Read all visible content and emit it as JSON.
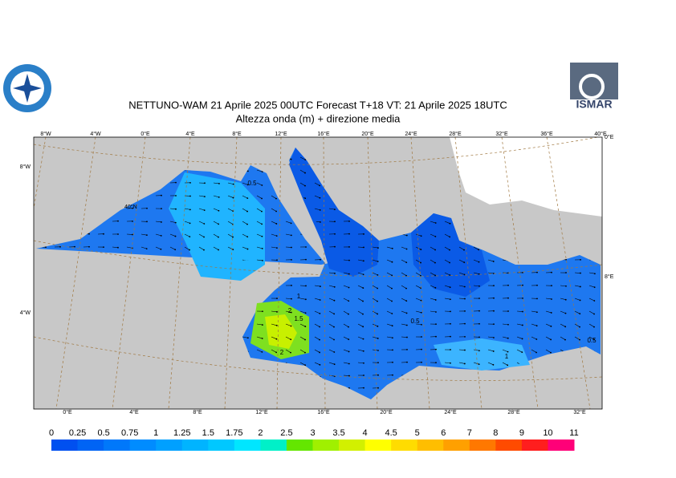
{
  "header": {
    "title": "NETTUNO-WAM  21   Aprile  2025 00UTC Forecast T+18 VT: 21   Aprile  2025 18UTC",
    "subtitle": "Altezza onda (m) + direzione media",
    "logo_text": "ISMAR"
  },
  "map": {
    "top_lon_labels": [
      "8°W",
      "4°W",
      "0°E",
      "4°E",
      "8°E",
      "12°E",
      "16°E",
      "20°E",
      "24°E",
      "28°E",
      "32°E",
      "36°E",
      "40°E"
    ],
    "bottom_lon_labels": [
      "0°E",
      "4°E",
      "8°E",
      "12°E",
      "16°E",
      "20°E",
      "24°E",
      "28°E",
      "32°E"
    ],
    "left_lat_labels": [
      "8°W",
      "4°W"
    ],
    "right_labels": [
      "0°E",
      "8°E"
    ],
    "inner_label": "40°N",
    "contour_labels": [
      "0.5",
      "1",
      "1.5",
      "2",
      "2",
      "0.5",
      "1",
      "0.5"
    ]
  },
  "colorbar": {
    "labels": [
      0,
      0.25,
      0.5,
      0.75,
      1,
      1.25,
      1.5,
      1.75,
      2,
      2.5,
      3,
      3.5,
      4,
      4.5,
      5,
      6,
      7,
      8,
      9,
      10,
      11
    ],
    "colors": [
      "#0050f0",
      "#0064f5",
      "#0078fa",
      "#008cff",
      "#00a0ff",
      "#00b4ff",
      "#00c8ff",
      "#00e6ff",
      "#00f0c8",
      "#64e600",
      "#a0f000",
      "#d2f000",
      "#ffff00",
      "#ffdc00",
      "#ffbe00",
      "#ffa000",
      "#ff7800",
      "#ff4b00",
      "#ff1e1e",
      "#ff0078",
      "#ff00c8"
    ]
  }
}
